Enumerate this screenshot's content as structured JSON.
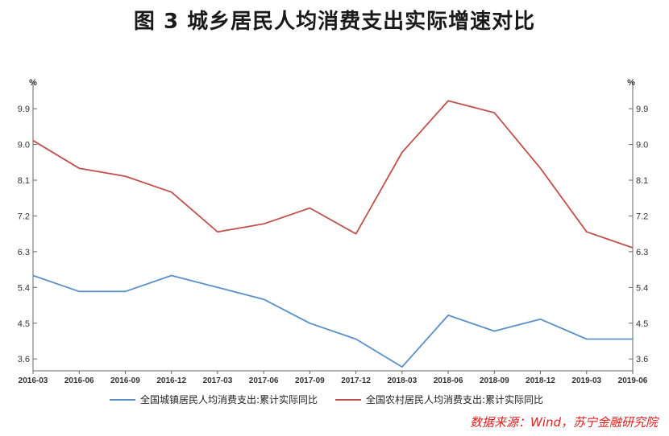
{
  "title": "图 3    城乡居民人均消费支出实际增速对比",
  "source": "数据来源：Wind，苏宁金融研究院",
  "colors": {
    "urban": "#5b8fc7",
    "rural": "#c0504d",
    "axis": "#666666"
  },
  "chart_data": {
    "type": "line",
    "unit_left": "%",
    "unit_right": "%",
    "x": [
      "2016-03",
      "2016-06",
      "2016-09",
      "2016-12",
      "2017-03",
      "2017-06",
      "2017-09",
      "2017-12",
      "2018-03",
      "2018-06",
      "2018-09",
      "2018-12",
      "2019-03",
      "2019-06"
    ],
    "yticks": [
      "3.6",
      "4.5",
      "5.4",
      "6.3",
      "7.2",
      "8.1",
      "9.0",
      "9.9"
    ],
    "ylim": [
      3.3,
      10.45
    ],
    "series": [
      {
        "name": "全国城镇居民人均消费支出:累计实际同比",
        "color": "#5b8fc7",
        "values": [
          5.7,
          5.3,
          5.3,
          5.7,
          5.4,
          5.1,
          4.5,
          4.1,
          3.4,
          4.7,
          4.3,
          4.6,
          4.1,
          4.1
        ]
      },
      {
        "name": "全国农村居民人均消费支出:累计实际同比",
        "color": "#c0504d",
        "values": [
          9.1,
          8.4,
          8.2,
          7.8,
          6.8,
          7.0,
          7.4,
          6.75,
          8.8,
          10.1,
          9.8,
          8.4,
          6.8,
          6.4
        ]
      }
    ],
    "legend_position": "bottom"
  }
}
